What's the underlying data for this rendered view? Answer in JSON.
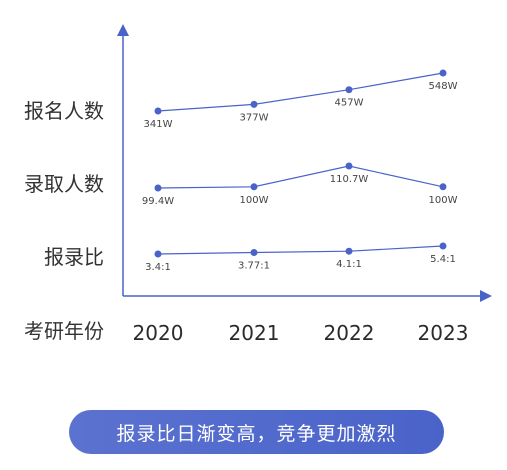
{
  "chart_data": {
    "type": "line",
    "x": [
      "2020",
      "2021",
      "2022",
      "2023"
    ],
    "x_axis_title": "考研年份",
    "series": [
      {
        "name": "报名人数",
        "values": [
          341,
          377,
          457,
          548
        ],
        "labels": [
          "341W",
          "377W",
          "457W",
          "548W"
        ],
        "unit": "W"
      },
      {
        "name": "录取人数",
        "values": [
          99.4,
          100,
          110.7,
          100
        ],
        "labels": [
          "99.4W",
          "100W",
          "110.7W",
          "100W"
        ],
        "unit": "W"
      },
      {
        "name": "报录比",
        "values": [
          3.4,
          3.77,
          4.1,
          5.4
        ],
        "labels": [
          "3.4:1",
          "3.77:1",
          "4.1:1",
          "5.4:1"
        ],
        "unit": ":1"
      }
    ],
    "colors": {
      "line": "#4a63c9",
      "axis": "#4a63c9"
    }
  },
  "footer": {
    "text": "报录比日渐变高，竞争更加激烈"
  }
}
